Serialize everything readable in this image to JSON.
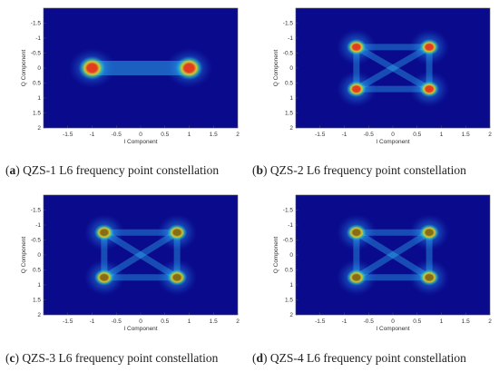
{
  "chart_data": [
    {
      "type": "scatter",
      "id": "a",
      "caption_letter": "a",
      "caption_text": "QZS-1 L6 frequency point constellation",
      "xlabel": "I Component",
      "ylabel": "Q Component",
      "xlim": [
        -2,
        2
      ],
      "ylim": [
        -2,
        2
      ],
      "y_inverted": true,
      "xticks": [
        "-1.5",
        "-1",
        "-0.5",
        "0",
        "0.5",
        "1",
        "1.5",
        "2"
      ],
      "yticks": [
        "-1.5",
        "-1",
        "-0.5",
        "0",
        "0.5",
        "1",
        "1.5",
        "2"
      ],
      "background": "#0a0a8c",
      "clusters": [
        {
          "x": -1.0,
          "y": 0.0
        },
        {
          "x": 1.0,
          "y": 0.0
        }
      ],
      "core_color": "#e83a18"
    },
    {
      "type": "scatter",
      "id": "b",
      "caption_letter": "b",
      "caption_text": "QZS-2 L6 frequency point constellation",
      "xlabel": "I Component",
      "ylabel": "Q Component",
      "xlim": [
        -2,
        2
      ],
      "ylim": [
        -2,
        2
      ],
      "y_inverted": true,
      "xticks": [
        "-1.5",
        "-1",
        "-0.5",
        "0",
        "0.5",
        "1",
        "1.5",
        "2"
      ],
      "yticks": [
        "-1.5",
        "-1",
        "-0.5",
        "0",
        "0.5",
        "1",
        "1.5",
        "2"
      ],
      "background": "#0a0a8c",
      "clusters": [
        {
          "x": -0.75,
          "y": -0.7
        },
        {
          "x": 0.75,
          "y": -0.7
        },
        {
          "x": -0.75,
          "y": 0.7
        },
        {
          "x": 0.75,
          "y": 0.7
        }
      ],
      "core_color": "#e83a18"
    },
    {
      "type": "scatter",
      "id": "c",
      "caption_letter": "c",
      "caption_text": "QZS-3 L6 frequency point constellation",
      "xlabel": "I Component",
      "ylabel": "Q Component",
      "xlim": [
        -2,
        2
      ],
      "ylim": [
        -2,
        2
      ],
      "y_inverted": true,
      "xticks": [
        "-1.5",
        "-1",
        "-0.5",
        "0",
        "0.5",
        "1",
        "1.5",
        "2"
      ],
      "yticks": [
        "-1.5",
        "-1",
        "-0.5",
        "0",
        "0.5",
        "1",
        "1.5",
        "2"
      ],
      "background": "#0a0a8c",
      "clusters": [
        {
          "x": -0.75,
          "y": -0.75
        },
        {
          "x": 0.75,
          "y": -0.75
        },
        {
          "x": -0.75,
          "y": 0.75
        },
        {
          "x": 0.75,
          "y": 0.75
        }
      ],
      "core_color": "#8a6a10"
    },
    {
      "type": "scatter",
      "id": "d",
      "caption_letter": "d",
      "caption_text": "QZS-4 L6 frequency point constellation",
      "xlabel": "I Component",
      "ylabel": "Q Component",
      "xlim": [
        -2,
        2
      ],
      "ylim": [
        -2,
        2
      ],
      "y_inverted": true,
      "xticks": [
        "-1.5",
        "-1",
        "-0.5",
        "0",
        "0.5",
        "1",
        "1.5",
        "2"
      ],
      "yticks": [
        "-1.5",
        "-1",
        "-0.5",
        "0",
        "0.5",
        "1",
        "1.5",
        "2"
      ],
      "background": "#0a0a8c",
      "clusters": [
        {
          "x": -0.75,
          "y": -0.75
        },
        {
          "x": 0.75,
          "y": -0.75
        },
        {
          "x": -0.75,
          "y": 0.75
        },
        {
          "x": 0.75,
          "y": 0.75
        }
      ],
      "core_color": "#8a6a10"
    }
  ]
}
